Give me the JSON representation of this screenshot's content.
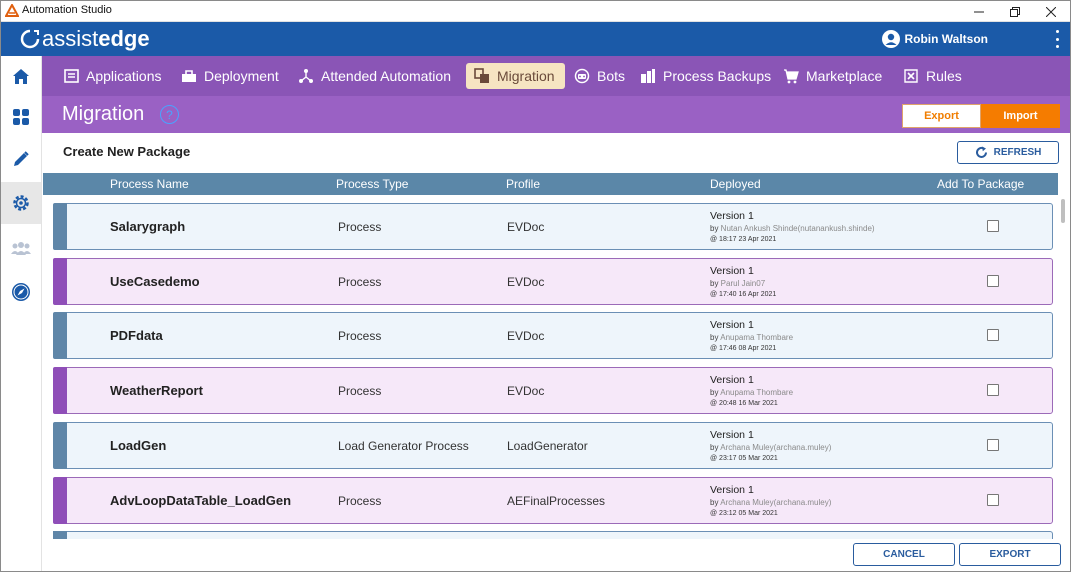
{
  "window": {
    "title": "Automation Studio",
    "controls": [
      "minimize-icon",
      "restore-icon",
      "close-icon"
    ]
  },
  "brand": {
    "logo_part1": "assist",
    "logo_part2": "edge",
    "user_name": "Robin Waltson",
    "colors": {
      "brand": "#1b5aa8",
      "nav": "#8a55b6",
      "header": "#9a61c4",
      "accent": "#f57c00"
    }
  },
  "sidebar": {
    "items": [
      {
        "icon": "home-icon"
      },
      {
        "icon": "dashboard-icon"
      },
      {
        "icon": "pencil-icon"
      },
      {
        "icon": "gear-icon",
        "active": true
      },
      {
        "icon": "users-icon"
      },
      {
        "icon": "compass-icon"
      }
    ]
  },
  "nav": {
    "items": [
      {
        "label": "Applications",
        "icon": "applications-icon"
      },
      {
        "label": "Deployment",
        "icon": "deployment-icon"
      },
      {
        "label": "Attended Automation",
        "icon": "attended-automation-icon"
      },
      {
        "label": "Migration",
        "icon": "migration-icon",
        "active": true
      },
      {
        "label": "Bots",
        "icon": "bot-icon"
      },
      {
        "label": "Process Backups",
        "icon": "backup-icon"
      },
      {
        "label": "Marketplace",
        "icon": "cart-icon"
      },
      {
        "label": "Rules",
        "icon": "rules-icon"
      }
    ]
  },
  "header": {
    "title": "Migration",
    "help": "?",
    "export_label": "Export",
    "import_label": "Import",
    "active_tab": "Import"
  },
  "package": {
    "title": "Create New Package",
    "refresh_label": "REFRESH"
  },
  "table": {
    "columns": [
      "Process Name",
      "Process Type",
      "Profile",
      "Deployed",
      "Add To Package"
    ],
    "rows": [
      {
        "name": "Salarygraph",
        "type": "Process",
        "profile": "EVDoc",
        "version": "Version 1",
        "by_prefix": "by ",
        "by": "Nutan Ankush Shinde(nutanankush.shinde)",
        "at": "@ 18:17 23 Apr 2021",
        "checked": false,
        "style": "blue"
      },
      {
        "name": "UseCasedemo",
        "type": "Process",
        "profile": "EVDoc",
        "version": "Version 1",
        "by_prefix": "by ",
        "by": "Parul Jain07",
        "at": "@ 17:40 16 Apr 2021",
        "checked": false,
        "style": "purple"
      },
      {
        "name": "PDFdata",
        "type": "Process",
        "profile": "EVDoc",
        "version": "Version 1",
        "by_prefix": "by ",
        "by": "Anupama Thombare",
        "at": "@ 17:46 08 Apr 2021",
        "checked": false,
        "style": "blue"
      },
      {
        "name": "WeatherReport",
        "type": "Process",
        "profile": "EVDoc",
        "version": "Version 1",
        "by_prefix": "by ",
        "by": "Anupama Thombare",
        "at": "@ 20:48 16 Mar 2021",
        "checked": false,
        "style": "purple"
      },
      {
        "name": "LoadGen",
        "type": "Load Generator Process",
        "profile": "LoadGenerator",
        "version": "Version 1",
        "by_prefix": "by ",
        "by": "Archana Muley(archana.muley)",
        "at": "@ 23:17 05 Mar 2021",
        "checked": false,
        "style": "blue"
      },
      {
        "name": "AdvLoopDataTable_LoadGen",
        "type": "Process",
        "profile": "AEFinalProcesses",
        "version": "Version 1",
        "by_prefix": "by ",
        "by": "Archana Muley(archana.muley)",
        "at": "@ 23:12 05 Mar 2021",
        "checked": false,
        "style": "purple"
      }
    ]
  },
  "footer": {
    "cancel_label": "CANCEL",
    "export_label": "EXPORT"
  }
}
